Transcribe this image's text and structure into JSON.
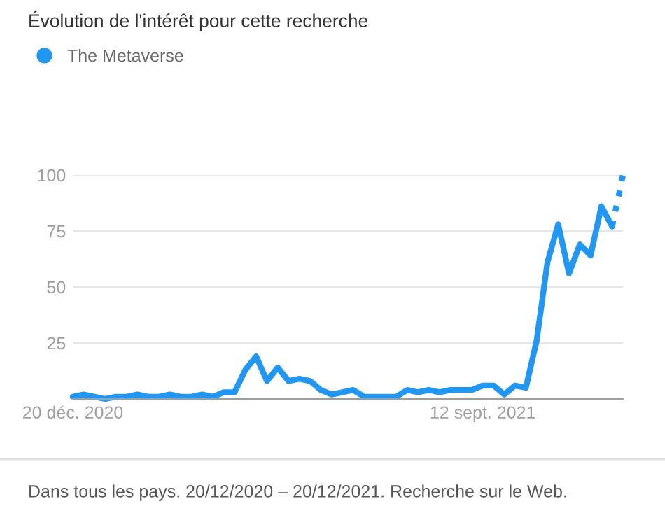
{
  "chart_data": {
    "type": "line",
    "title": "Évolution de l'intérêt pour cette recherche",
    "x": [
      "2020-12-20",
      "2020-12-27",
      "2021-01-03",
      "2021-01-10",
      "2021-01-17",
      "2021-01-24",
      "2021-01-31",
      "2021-02-07",
      "2021-02-14",
      "2021-02-21",
      "2021-02-28",
      "2021-03-07",
      "2021-03-14",
      "2021-03-21",
      "2021-03-28",
      "2021-04-04",
      "2021-04-11",
      "2021-04-18",
      "2021-04-25",
      "2021-05-02",
      "2021-05-09",
      "2021-05-16",
      "2021-05-23",
      "2021-05-30",
      "2021-06-06",
      "2021-06-13",
      "2021-06-20",
      "2021-06-27",
      "2021-07-04",
      "2021-07-11",
      "2021-07-18",
      "2021-07-25",
      "2021-08-01",
      "2021-08-08",
      "2021-08-15",
      "2021-08-22",
      "2021-08-29",
      "2021-09-05",
      "2021-09-12",
      "2021-09-19",
      "2021-09-26",
      "2021-10-03",
      "2021-10-10",
      "2021-10-17",
      "2021-10-24",
      "2021-10-31",
      "2021-11-07",
      "2021-11-14",
      "2021-11-21",
      "2021-11-28",
      "2021-12-05",
      "2021-12-12"
    ],
    "series": [
      {
        "name": "The Metaverse",
        "color": "#2196f3",
        "line_style": "solid",
        "values": [
          1,
          2,
          1,
          0,
          1,
          1,
          2,
          1,
          1,
          2,
          1,
          1,
          2,
          1,
          3,
          3,
          13,
          19,
          8,
          14,
          8,
          9,
          8,
          4,
          2,
          3,
          4,
          1,
          1,
          1,
          1,
          4,
          3,
          4,
          3,
          4,
          4,
          4,
          6,
          6,
          2,
          6,
          5,
          26,
          61,
          78,
          56,
          69,
          64,
          86,
          77,
          null
        ]
      },
      {
        "color": "#2196f3",
        "line_style": "dotted",
        "values": [
          null,
          null,
          null,
          null,
          null,
          null,
          null,
          null,
          null,
          null,
          null,
          null,
          null,
          null,
          null,
          null,
          null,
          null,
          null,
          null,
          null,
          null,
          null,
          null,
          null,
          null,
          null,
          null,
          null,
          null,
          null,
          null,
          null,
          null,
          null,
          null,
          null,
          null,
          null,
          null,
          null,
          null,
          null,
          null,
          null,
          null,
          null,
          null,
          null,
          null,
          77,
          100
        ]
      }
    ],
    "xlim": [
      "2020-12-20",
      "2021-12-12"
    ],
    "xticks": [
      {
        "value": "2020-12-20",
        "label": "20 déc. 2020"
      },
      {
        "value": "2021-09-12",
        "label": "12 sept. 2021"
      }
    ],
    "ylim": [
      0,
      100
    ],
    "yticks": [
      25,
      50,
      75,
      100
    ],
    "grid": "y",
    "legend": "top left",
    "annotations": [
      "Dans tous les pays. 20/12/2020 – 20/12/2021. Recherche sur le Web."
    ]
  }
}
